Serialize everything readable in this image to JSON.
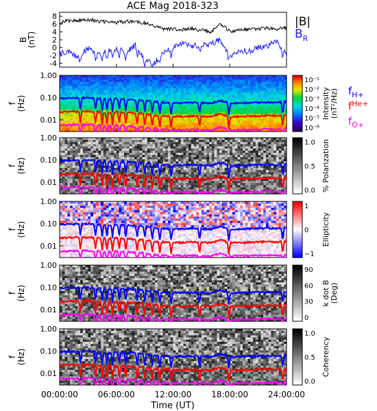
{
  "title": "ACE Mag 2018-323",
  "x_axis": {
    "label": "Time (UT)",
    "ticks": [
      "00:00:00",
      "06:00:00",
      "12:00:00",
      "18:00:00",
      "24:00:00"
    ],
    "range_hours": [
      0,
      24
    ]
  },
  "colors": {
    "B_total": "#000000",
    "B_R": "#1a1aff",
    "f_H": "#0000ff",
    "f_He": "#ff0000",
    "f_O": "#ff00ff"
  },
  "panels": [
    {
      "id": "bfield",
      "ylabel": [
        "B",
        "(nT)"
      ],
      "yticks": [
        "8",
        "6",
        "4",
        "2",
        "0",
        "-2",
        "-4"
      ],
      "legend": [
        {
          "text": "|B|",
          "sub": ""
        },
        {
          "text": "B",
          "sub": "R"
        }
      ]
    },
    {
      "id": "intensity",
      "ylabel": [
        "f",
        "(Hz)"
      ],
      "yticks": [
        "1.00",
        "0.10",
        "0.01"
      ],
      "colorbar_title": "Intensity",
      "colorbar_unit": "(nT²/Hz)",
      "colorbar_ticks": [
        "10⁻¹",
        "10⁻²",
        "10⁻³",
        "10⁻⁴",
        "10⁻⁵",
        "10⁻⁶"
      ],
      "colormap": "rainbow",
      "legend": [
        {
          "text": "f",
          "sub": "H+"
        },
        {
          "text": "f",
          "sub": "He+"
        },
        {
          "text": "f",
          "sub": "O+"
        }
      ]
    },
    {
      "id": "polarization",
      "ylabel": [
        "f",
        "(Hz)"
      ],
      "yticks": [
        "1.00",
        "0.10",
        "0.01"
      ],
      "colorbar_title": "% Polarization",
      "colorbar_unit": "",
      "colorbar_ticks": [
        "1.0",
        "0.5",
        "0.0"
      ],
      "colormap": "gray"
    },
    {
      "id": "ellipticity",
      "ylabel": [
        "f",
        "(Hz)"
      ],
      "yticks": [
        "1.00",
        "0.10",
        "0.01"
      ],
      "colorbar_title": "Ellipticity",
      "colorbar_unit": "",
      "colorbar_ticks": [
        "1",
        "0",
        "−1"
      ],
      "colormap": "bwr"
    },
    {
      "id": "kdotb",
      "ylabel": [
        "f",
        "(Hz)"
      ],
      "yticks": [
        "1.00",
        "0.10",
        "0.01"
      ],
      "colorbar_title": "k dot B",
      "colorbar_unit": "(Deg)",
      "colorbar_ticks": [
        "90",
        "60",
        "30",
        "0"
      ],
      "colormap": "gray"
    },
    {
      "id": "coherency",
      "ylabel": [
        "f",
        "(Hz)"
      ],
      "yticks": [
        "1.00",
        "0.10",
        "0.01"
      ],
      "colorbar_title": "Coherency",
      "colorbar_unit": "",
      "colorbar_ticks": [
        "1.0",
        "0.5",
        "0.0"
      ],
      "colormap": "gray"
    }
  ],
  "chart_data": {
    "type": "line",
    "title": "ACE Mag 2018-323",
    "xlabel": "Time (UT)",
    "x_unit": "hours",
    "x": [
      0,
      1,
      2,
      3,
      4,
      5,
      6,
      7,
      8,
      9,
      10,
      11,
      12,
      13,
      14,
      15,
      16,
      17,
      18,
      19,
      20,
      21,
      22,
      23,
      24
    ],
    "series": [
      {
        "name": "|B|",
        "panel": "bfield",
        "values": [
          6.5,
          6.8,
          7.0,
          7.2,
          6.8,
          6.5,
          6.4,
          6.6,
          6.7,
          6.3,
          5.5,
          4.8,
          4.7,
          4.6,
          4.8,
          4.5,
          4.0,
          6.0,
          4.2,
          4.5,
          4.6,
          4.8,
          4.9,
          4.8,
          5.0
        ]
      },
      {
        "name": "B_R",
        "panel": "bfield",
        "values": [
          -1.5,
          -1.0,
          -2.5,
          0.0,
          -2.0,
          -1.0,
          -0.5,
          -1.0,
          0.5,
          -3.0,
          -4.0,
          -1.5,
          0.0,
          1.0,
          0.5,
          0.5,
          1.0,
          2.0,
          -2.0,
          -1.0,
          -1.0,
          0.0,
          0.5,
          1.5,
          -2.0
        ]
      },
      {
        "name": "f_H+",
        "panel": "spectra",
        "values": [
          0.09,
          0.095,
          0.097,
          0.098,
          0.092,
          0.085,
          0.09,
          0.085,
          0.08,
          0.075,
          0.065,
          0.06,
          0.058,
          0.057,
          0.06,
          0.058,
          0.055,
          0.075,
          0.055,
          0.057,
          0.058,
          0.06,
          0.062,
          0.06,
          0.065
        ]
      },
      {
        "name": "f_He+",
        "panel": "spectra",
        "values": [
          0.0225,
          0.0237,
          0.0242,
          0.0245,
          0.023,
          0.0212,
          0.0225,
          0.0212,
          0.02,
          0.0187,
          0.0162,
          0.015,
          0.0145,
          0.0142,
          0.015,
          0.0145,
          0.0137,
          0.0187,
          0.0137,
          0.0142,
          0.0145,
          0.015,
          0.0155,
          0.015,
          0.0162
        ]
      },
      {
        "name": "f_O+",
        "panel": "spectra",
        "values": [
          0.0056,
          0.0059,
          0.006,
          0.0061,
          0.0057,
          0.0053,
          0.0056,
          0.0053,
          0.005,
          0.0047,
          0.0041,
          0.0037,
          0.0036,
          0.0036,
          0.0037,
          0.0036,
          0.0034,
          0.0047,
          0.0034,
          0.0036,
          0.0036,
          0.0037,
          0.0039,
          0.0037,
          0.0041
        ]
      }
    ],
    "ylim_bfield": [
      -5,
      9
    ],
    "ylim_freq_log": [
      0.003,
      1.0
    ],
    "dips_hours": [
      2.2,
      3.8,
      4.5,
      5.0,
      5.6,
      6.3,
      7.0,
      8.2,
      9.0,
      9.8,
      10.6,
      11.8,
      14.8,
      17.9,
      23.6
    ],
    "grid": false
  }
}
